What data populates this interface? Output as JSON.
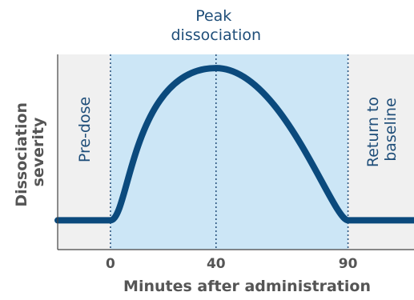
{
  "chart_data": {
    "type": "line",
    "xlabel": "Minutes after administration",
    "ylabel": [
      "Dissociation",
      "severity"
    ],
    "title": [
      "Peak",
      "dissociation"
    ],
    "x_ticks": [
      0,
      40,
      90
    ],
    "xlim": [
      -20,
      115
    ],
    "ylim": [
      0,
      1
    ],
    "phases": [
      {
        "label": "Pre-dose",
        "x_start": -20,
        "x_end": 0
      },
      {
        "label": "Peak dissociation",
        "x_start": 0,
        "x_end": 90
      },
      {
        "label": [
          "Return to",
          "baseline"
        ],
        "x_start": 90,
        "x_end": 115
      }
    ],
    "reference_lines_x": [
      0,
      40,
      90
    ],
    "series": [
      {
        "x": [
          -20,
          0,
          40,
          90,
          115
        ],
        "y": [
          0.15,
          0.15,
          0.93,
          0.15,
          0.15
        ]
      }
    ],
    "grid": false,
    "colors": {
      "line": "#0b4a7d",
      "peak_band": "#cce6f6",
      "side_band": "#f0f0f0",
      "reference_line": "#2b5580",
      "text": "#555555",
      "label": "#1f4e79"
    }
  }
}
